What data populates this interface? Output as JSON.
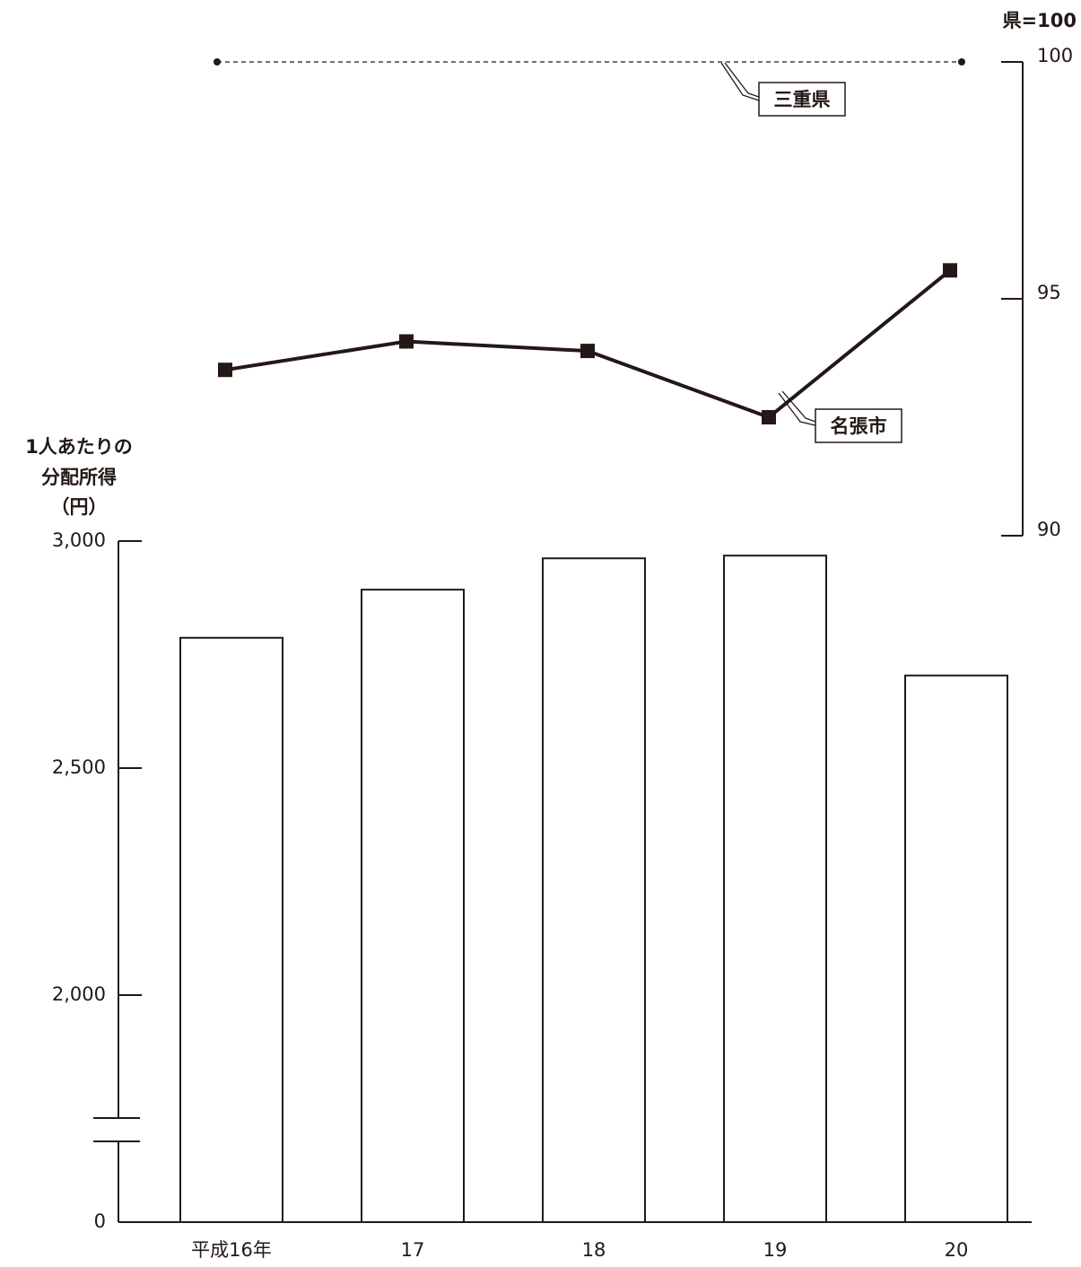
{
  "chart_data": {
    "type": "bar_line",
    "ylabel": [
      "1人あたりの",
      "分配所得",
      "（円）"
    ],
    "y2label": "県=100",
    "categories": [
      "平成16年",
      "17",
      "18",
      "19",
      "20"
    ],
    "series": [
      {
        "type": "bar",
        "values": [
          2787,
          2893,
          2962,
          2968,
          2704
        ],
        "color": "#ffffff"
      },
      {
        "type": "line",
        "name": "名張市",
        "axis": "y2",
        "values": [
          93.5,
          94.1,
          93.9,
          92.5,
          95.6
        ],
        "color": "#231815"
      },
      {
        "type": "line",
        "name": "三重県",
        "axis": "y2",
        "values": [
          100,
          100,
          100,
          100,
          100
        ],
        "color": "#231815",
        "dashed": true
      }
    ],
    "ylim": [
      0,
      3000
    ],
    "yticks": [
      0,
      {
        "value": 2000,
        "label": "2,000"
      },
      {
        "value": 2500,
        "label": "2,500"
      },
      {
        "value": 3000,
        "label": "3,000"
      }
    ],
    "axis_break": true,
    "y2lim": [
      90,
      100
    ],
    "y2ticks": [
      90,
      95,
      100
    ]
  }
}
